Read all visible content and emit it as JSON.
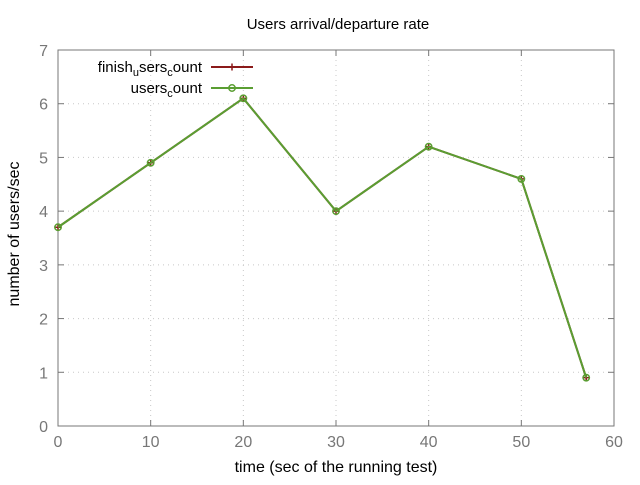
{
  "chart_data": {
    "type": "line",
    "title": "Users arrival/departure rate",
    "xlabel": "time (sec of the running test)",
    "ylabel": "number of users/sec",
    "xlim": [
      0,
      60
    ],
    "ylim": [
      0,
      7
    ],
    "xticks": [
      0,
      10,
      20,
      30,
      40,
      50,
      60
    ],
    "yticks": [
      0,
      1,
      2,
      3,
      4,
      5,
      6,
      7
    ],
    "grid": true,
    "legend_position": "top-left",
    "series": [
      {
        "name_main": "finish",
        "name_sub1": "u",
        "name_mid": "sers",
        "name_sub2": "c",
        "name_end": "ount",
        "color": "#8b1a1a",
        "marker": "plus",
        "x": [
          0,
          10,
          20,
          30,
          40,
          50,
          57
        ],
        "y": [
          3.7,
          4.9,
          6.1,
          4.0,
          5.2,
          4.6,
          0.9
        ]
      },
      {
        "name_main": "users",
        "name_sub1": "c",
        "name_mid": "ount",
        "name_sub2": "",
        "name_end": "",
        "color": "#5a9e32",
        "marker": "circle",
        "x": [
          0,
          10,
          20,
          30,
          40,
          50,
          57
        ],
        "y": [
          3.7,
          4.9,
          6.1,
          4.0,
          5.2,
          4.6,
          0.9
        ]
      }
    ]
  }
}
